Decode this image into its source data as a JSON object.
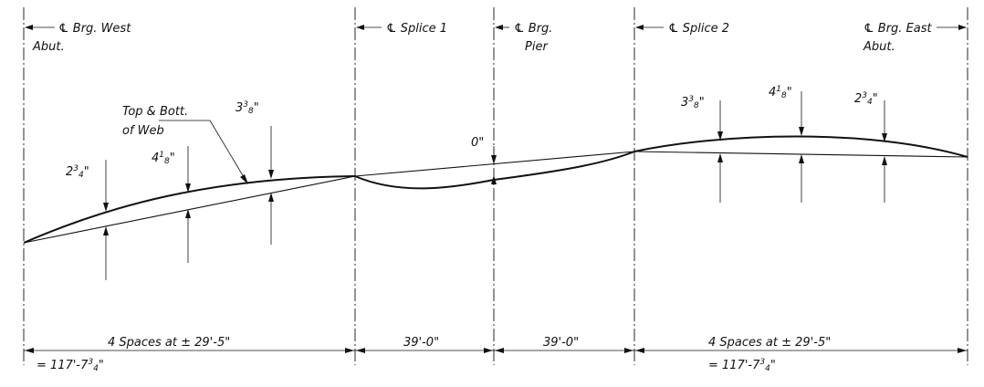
{
  "centerlines": [
    {
      "label": "Brg. West",
      "label2": "Abut."
    },
    {
      "label": "Splice 1"
    },
    {
      "label": "Brg.",
      "label2": "Pier"
    },
    {
      "label": "Splice 2"
    },
    {
      "label": "Brg. East",
      "label2": "Abut."
    }
  ],
  "cl_symbol": "℄",
  "callout": {
    "line1": "Top & Bott.",
    "line2": "of Web"
  },
  "camber": {
    "west": [
      {
        "whole": "2",
        "sup": "3",
        "sub": "4"
      },
      {
        "whole": "4",
        "sup": "1",
        "sub": "8"
      },
      {
        "whole": "3",
        "sup": "3",
        "sub": "8"
      }
    ],
    "pier": {
      "whole": "0"
    },
    "east": [
      {
        "whole": "3",
        "sup": "3",
        "sub": "8"
      },
      {
        "whole": "4",
        "sup": "1",
        "sub": "8"
      },
      {
        "whole": "2",
        "sup": "3",
        "sub": "4"
      }
    ]
  },
  "dimensions": {
    "west_spacing": "4 Spaces at ± 29'-5\"",
    "west_total_prefix": "= 117'-7",
    "west_total_sup": "3",
    "west_total_sub": "4",
    "splice_to_pier": "39'-0\"",
    "pier_to_splice": "39'-0\"",
    "east_spacing": "4 Spaces at ± 29'-5\"",
    "east_total_prefix": "= 117'-7",
    "east_total_sup": "3",
    "east_total_sub": "4"
  }
}
